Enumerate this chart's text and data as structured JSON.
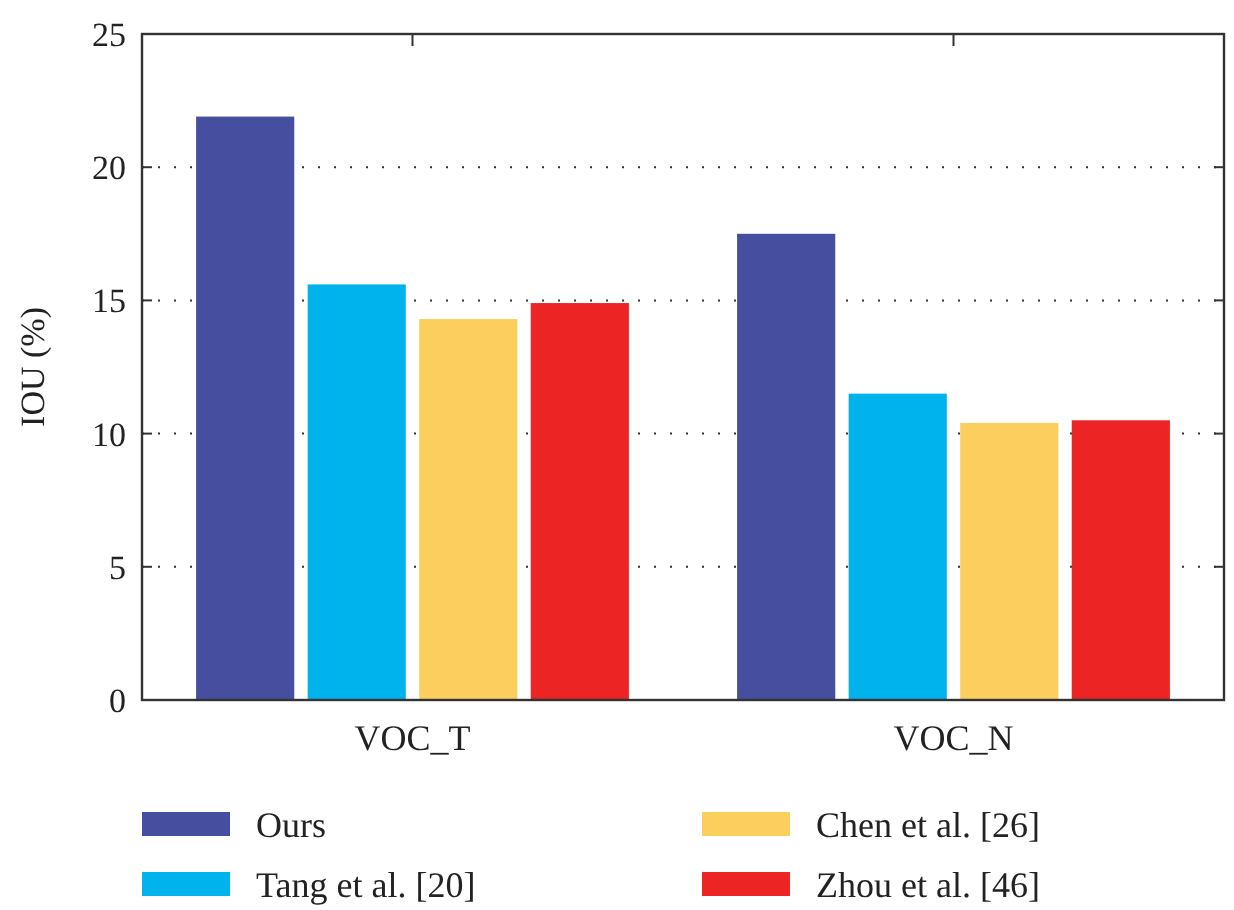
{
  "chart_data": {
    "type": "bar",
    "ylabel": "IOU (%)",
    "categories": [
      "VOC_T",
      "VOC_N"
    ],
    "series": [
      {
        "name": "Ours",
        "color": "#464ea0",
        "values": [
          21.9,
          17.5
        ]
      },
      {
        "name": "Tang et al. [20]",
        "color": "#00b3ec",
        "values": [
          15.6,
          11.5
        ]
      },
      {
        "name": "Chen et al. [26]",
        "color": "#fcce5e",
        "values": [
          14.3,
          10.4
        ]
      },
      {
        "name": "Zhou et al. [46]",
        "color": "#ec2424",
        "values": [
          14.9,
          10.5
        ]
      }
    ],
    "ylim": [
      0,
      25
    ],
    "yticks": [
      0,
      5,
      10,
      15,
      20,
      25
    ],
    "grid": "y",
    "legend": "bottom"
  }
}
